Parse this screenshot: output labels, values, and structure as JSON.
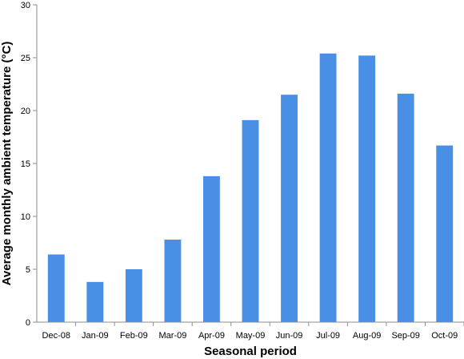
{
  "chart_data": {
    "type": "bar",
    "title": "",
    "xlabel": "Seasonal period",
    "ylabel": "Average monthly ambient temperature (°C)",
    "ylim": [
      0,
      30
    ],
    "yticks": [
      0,
      5,
      10,
      15,
      20,
      25,
      30
    ],
    "grid": false,
    "legend": "none",
    "bar_color": "#4a8fe6",
    "axis_color": "#8c8c8c",
    "categories": [
      "Dec-08",
      "Jan-09",
      "Feb-09",
      "Mar-09",
      "Apr-09",
      "May-09",
      "Jun-09",
      "Jul-09",
      "Aug-09",
      "Sep-09",
      "Oct-09"
    ],
    "values": [
      6.4,
      3.8,
      5.0,
      7.8,
      13.8,
      19.1,
      21.5,
      25.4,
      25.2,
      21.6,
      16.7
    ]
  }
}
